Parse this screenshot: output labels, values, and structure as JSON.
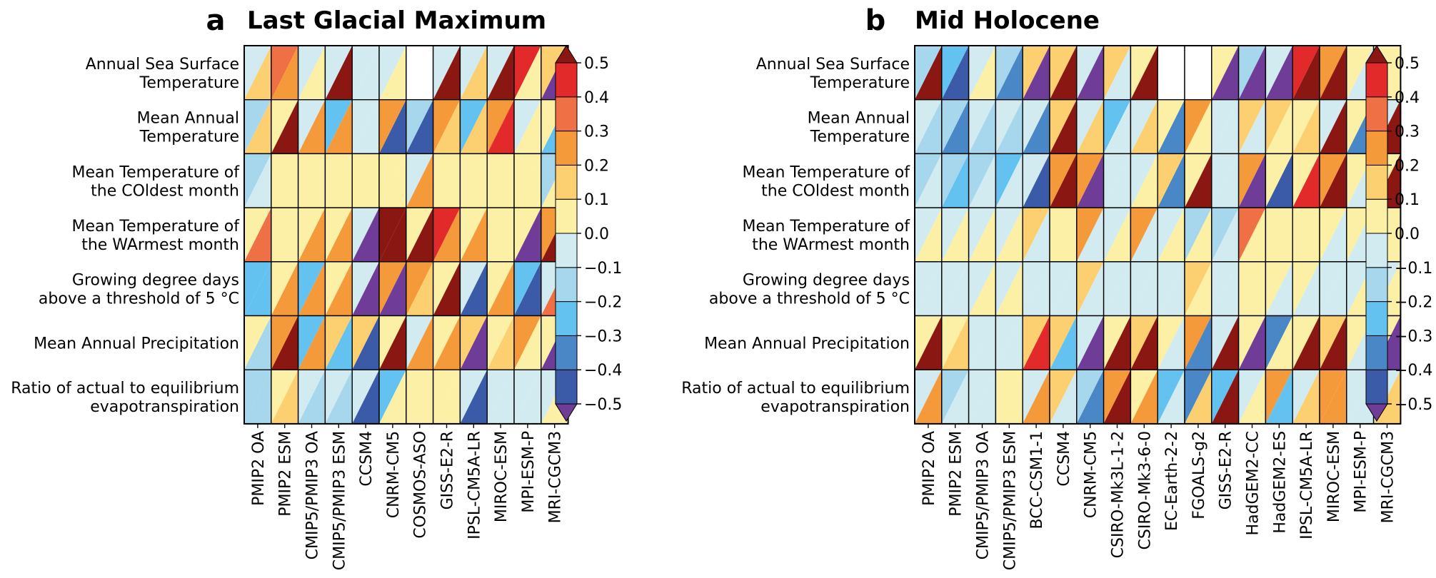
{
  "chart_data": [
    {
      "type": "heatmap",
      "panel_letter": "a",
      "title": "Last Glacial Maximum",
      "rows": [
        [
          "Annual Sea Surface",
          "Temperature"
        ],
        [
          "Mean Annual",
          "Temperature"
        ],
        [
          "Mean Temperature of",
          "the COldest month"
        ],
        [
          "Mean Temperature of",
          "the WArmest month"
        ],
        [
          "Growing degree days",
          "above a threshold of 5 °C"
        ],
        [
          "Mean Annual Precipitation"
        ],
        [
          "Ratio of actual to equilibrium",
          "evapotranspiration"
        ]
      ],
      "columns": [
        "PMIP2 OA",
        "PMIP2 ESM",
        "CMIP5/PMIP3 OA",
        "CMIP5/PMIP3 ESM",
        "CCSM4",
        "CNRM-CM5",
        "COSMOS-ASO",
        "GISS-E2-R",
        "IPSL-CM5A-LR",
        "MIROC-ESM",
        "MPI-ESM-P",
        "MRI-CGCM3"
      ],
      "cells": [
        [
          [
            -0.05,
            0.15
          ],
          [
            0.35,
            0.25
          ],
          [
            -0.05,
            0.05
          ],
          [
            -0.05,
            0.55
          ],
          [
            -0.05,
            -0.05
          ],
          [
            -0.05,
            0.05
          ],
          [
            null,
            null
          ],
          [
            -0.05,
            0.55
          ],
          [
            -0.05,
            0.15
          ],
          [
            -0.05,
            0.55
          ],
          [
            0.45,
            0.05
          ],
          [
            0.15,
            -0.55
          ]
        ],
        [
          [
            -0.15,
            0.15
          ],
          [
            0.05,
            0.55
          ],
          [
            -0.05,
            0.25
          ],
          [
            -0.25,
            0.25
          ],
          [
            -0.05,
            -0.05
          ],
          [
            0.25,
            -0.45
          ],
          [
            -0.15,
            -0.45
          ],
          [
            0.25,
            0.15
          ],
          [
            -0.25,
            0.15
          ],
          [
            0.25,
            0.45
          ],
          [
            -0.05,
            0.05
          ],
          [
            0.05,
            -0.25
          ]
        ],
        [
          [
            -0.15,
            -0.05
          ],
          [
            0.05,
            0.05
          ],
          [
            0.05,
            0.05
          ],
          [
            0.05,
            0.05
          ],
          [
            0.05,
            0.05
          ],
          [
            0.05,
            0.05
          ],
          [
            -0.05,
            0.25
          ],
          [
            0.05,
            0.05
          ],
          [
            0.05,
            0.05
          ],
          [
            0.05,
            0.05
          ],
          [
            0.05,
            0.05
          ],
          [
            -0.15,
            0.05
          ]
        ],
        [
          [
            0.05,
            0.35
          ],
          [
            0.05,
            0.05
          ],
          [
            0.05,
            0.25
          ],
          [
            0.05,
            0.25
          ],
          [
            -0.05,
            -0.55
          ],
          [
            0.55,
            0.55
          ],
          [
            0.05,
            0.55
          ],
          [
            0.45,
            0.25
          ],
          [
            0.05,
            0.25
          ],
          [
            0.05,
            0.05
          ],
          [
            0.05,
            -0.55
          ],
          [
            0.25,
            0.55
          ]
        ],
        [
          [
            -0.25,
            -0.25
          ],
          [
            0.05,
            0.25
          ],
          [
            -0.25,
            0.25
          ],
          [
            0.05,
            0.25
          ],
          [
            -0.05,
            -0.55
          ],
          [
            0.25,
            -0.55
          ],
          [
            0.25,
            0.15
          ],
          [
            0.05,
            0.55
          ],
          [
            -0.05,
            -0.45
          ],
          [
            0.05,
            0.25
          ],
          [
            -0.25,
            -0.45
          ],
          [
            -0.05,
            0.35
          ]
        ],
        [
          [
            0.05,
            -0.15
          ],
          [
            0.25,
            0.55
          ],
          [
            -0.25,
            0.25
          ],
          [
            0.15,
            -0.25
          ],
          [
            0.15,
            -0.45
          ],
          [
            0.05,
            0.55
          ],
          [
            -0.05,
            0.25
          ],
          [
            0.05,
            0.25
          ],
          [
            0.15,
            -0.55
          ],
          [
            0.05,
            0.15
          ],
          [
            0.25,
            0.05
          ],
          [
            0.05,
            -0.55
          ]
        ],
        [
          [
            -0.15,
            -0.15
          ],
          [
            0.05,
            0.15
          ],
          [
            -0.05,
            -0.15
          ],
          [
            -0.05,
            -0.15
          ],
          [
            -0.05,
            -0.45
          ],
          [
            -0.25,
            0.05
          ],
          [
            0.05,
            0.05
          ],
          [
            0.05,
            0.05
          ],
          [
            -0.05,
            -0.45
          ],
          [
            -0.05,
            -0.05
          ],
          [
            -0.05,
            -0.05
          ],
          [
            -0.05,
            0.05
          ]
        ]
      ]
    },
    {
      "type": "heatmap",
      "panel_letter": "b",
      "title": "Mid Holocene",
      "rows": [
        [
          "Annual Sea Surface",
          "Temperature"
        ],
        [
          "Mean Annual",
          "Temperature"
        ],
        [
          "Mean Temperature of",
          "the COldest month"
        ],
        [
          "Mean Temperature of",
          "the WArmest month"
        ],
        [
          "Growing degree days",
          "above a threshold of 5 °C"
        ],
        [
          "Mean Annual Precipitation"
        ],
        [
          "Ratio of actual to equilibrium",
          "evapotranspiration"
        ]
      ],
      "columns": [
        "PMIP2 OA",
        "PMIP2 ESM",
        "CMIP5/PMIP3 OA",
        "CMIP5/PMIP3 ESM",
        "BCC-CSM1-1",
        "CCSM4",
        "CNRM-CM5",
        "CSIRO-Mk3L-1-2",
        "CSIRO-Mk3-6-0",
        "EC-Earth-2-2",
        "FGOALS-g2",
        "GISS-E2-R",
        "HadGEM2-CC",
        "HadGEM2-ES",
        "IPSL-CM5A-LR",
        "MIROC-ESM",
        "MPI-ESM-P",
        "MRI-CGCM3"
      ],
      "cells": [
        [
          [
            -0.15,
            0.55
          ],
          [
            -0.25,
            -0.45
          ],
          [
            -0.05,
            0.05
          ],
          [
            -0.15,
            -0.35
          ],
          [
            0.15,
            -0.55
          ],
          [
            0.15,
            0.55
          ],
          [
            -0.05,
            -0.55
          ],
          [
            0.15,
            -0.05
          ],
          [
            0.05,
            0.55
          ],
          [
            null,
            null
          ],
          [
            null,
            null
          ],
          [
            0.05,
            -0.55
          ],
          [
            -0.15,
            -0.55
          ],
          [
            -0.05,
            -0.55
          ],
          [
            0.45,
            0.55
          ],
          [
            0.25,
            0.55
          ],
          [
            0.05,
            -0.05
          ],
          [
            0.05,
            0.05
          ]
        ],
        [
          [
            -0.05,
            -0.15
          ],
          [
            -0.15,
            -0.35
          ],
          [
            -0.05,
            -0.15
          ],
          [
            -0.05,
            -0.15
          ],
          [
            -0.05,
            -0.35
          ],
          [
            0.15,
            0.55
          ],
          [
            -0.05,
            0.15
          ],
          [
            -0.25,
            -0.05
          ],
          [
            -0.05,
            0.15
          ],
          [
            0.05,
            -0.35
          ],
          [
            0.25,
            0.05
          ],
          [
            -0.05,
            -0.05
          ],
          [
            0.15,
            -0.05
          ],
          [
            0.15,
            0.05
          ],
          [
            0.05,
            0.15
          ],
          [
            -0.05,
            0.55
          ],
          [
            0.05,
            -0.35
          ],
          [
            -0.05,
            0.55
          ]
        ],
        [
          [
            -0.15,
            -0.05
          ],
          [
            -0.15,
            -0.25
          ],
          [
            -0.15,
            -0.05
          ],
          [
            -0.25,
            -0.05
          ],
          [
            -0.05,
            -0.45
          ],
          [
            0.25,
            0.55
          ],
          [
            0.25,
            -0.55
          ],
          [
            -0.05,
            -0.05
          ],
          [
            -0.05,
            0.05
          ],
          [
            0.15,
            -0.35
          ],
          [
            0.05,
            0.55
          ],
          [
            -0.05,
            -0.05
          ],
          [
            0.25,
            -0.55
          ],
          [
            0.05,
            -0.45
          ],
          [
            0.05,
            0.45
          ],
          [
            0.25,
            0.55
          ],
          [
            0.05,
            -0.05
          ],
          [
            0.05,
            0.55
          ]
        ],
        [
          [
            -0.05,
            0.05
          ],
          [
            -0.05,
            0.05
          ],
          [
            -0.05,
            0.05
          ],
          [
            -0.05,
            0.05
          ],
          [
            0.15,
            -0.05
          ],
          [
            0.05,
            0.05
          ],
          [
            0.25,
            -0.05
          ],
          [
            -0.05,
            0.05
          ],
          [
            0.25,
            -0.05
          ],
          [
            -0.05,
            0.05
          ],
          [
            -0.15,
            0.05
          ],
          [
            -0.15,
            -0.05
          ],
          [
            0.35,
            0.05
          ],
          [
            0.05,
            0.05
          ],
          [
            0.05,
            0.05
          ],
          [
            0.05,
            -0.05
          ],
          [
            0.05,
            -0.05
          ],
          [
            0.05,
            0.05
          ]
        ],
        [
          [
            -0.05,
            -0.05
          ],
          [
            -0.05,
            -0.05
          ],
          [
            -0.05,
            0.05
          ],
          [
            -0.05,
            0.05
          ],
          [
            -0.05,
            -0.05
          ],
          [
            -0.05,
            -0.05
          ],
          [
            0.15,
            -0.05
          ],
          [
            -0.05,
            -0.05
          ],
          [
            -0.05,
            -0.05
          ],
          [
            -0.05,
            -0.05
          ],
          [
            0.15,
            0.05
          ],
          [
            -0.05,
            -0.05
          ],
          [
            0.05,
            0.05
          ],
          [
            0.05,
            -0.05
          ],
          [
            0.05,
            -0.05
          ],
          [
            -0.05,
            -0.05
          ],
          [
            -0.05,
            0.05
          ],
          [
            -0.05,
            0.05
          ]
        ],
        [
          [
            0.05,
            0.55
          ],
          [
            0.05,
            0.15
          ],
          [
            -0.05,
            -0.05
          ],
          [
            -0.05,
            -0.05
          ],
          [
            0.15,
            0.45
          ],
          [
            0.15,
            -0.25
          ],
          [
            -0.05,
            -0.55
          ],
          [
            0.05,
            0.55
          ],
          [
            0.15,
            0.55
          ],
          [
            0.05,
            -0.05
          ],
          [
            0.25,
            -0.35
          ],
          [
            -0.05,
            0.55
          ],
          [
            0.05,
            -0.55
          ],
          [
            -0.35,
            0.05
          ],
          [
            0.05,
            0.55
          ],
          [
            0.15,
            0.55
          ],
          [
            0.05,
            -0.05
          ],
          [
            0.05,
            -0.55
          ]
        ],
        [
          [
            -0.05,
            0.25
          ],
          [
            -0.15,
            -0.05
          ],
          [
            -0.05,
            -0.05
          ],
          [
            0.05,
            0.05
          ],
          [
            -0.05,
            0.25
          ],
          [
            0.15,
            -0.05
          ],
          [
            -0.15,
            -0.35
          ],
          [
            0.25,
            0.55
          ],
          [
            0.05,
            0.25
          ],
          [
            -0.25,
            -0.05
          ],
          [
            -0.35,
            0.15
          ],
          [
            -0.25,
            0.55
          ],
          [
            -0.05,
            0.05
          ],
          [
            0.25,
            -0.25
          ],
          [
            -0.05,
            0.15
          ],
          [
            0.25,
            0.25
          ],
          [
            -0.05,
            -0.05
          ],
          [
            -0.05,
            0.15
          ]
        ]
      ]
    }
  ],
  "colorbar": {
    "min": -0.5,
    "max": 0.5,
    "tick_labels": [
      "0.5",
      "0.4",
      "0.3",
      "0.2",
      "0.1",
      "0.0",
      "−0.1",
      "−0.2",
      "−0.3",
      "−0.4",
      "−0.5"
    ],
    "tick_values": [
      0.5,
      0.4,
      0.3,
      0.2,
      0.1,
      0.0,
      -0.1,
      -0.2,
      -0.3,
      -0.4,
      -0.5
    ],
    "colors": [
      "#3b5ba8",
      "#4a87c6",
      "#63c2f0",
      "#a6d7ec",
      "#d2ebf0",
      "#fbf0a6",
      "#fcd070",
      "#f59a3b",
      "#ef7045",
      "#e32a2b"
    ],
    "under_color": "#6f3c98",
    "over_color": "#8b1713"
  }
}
